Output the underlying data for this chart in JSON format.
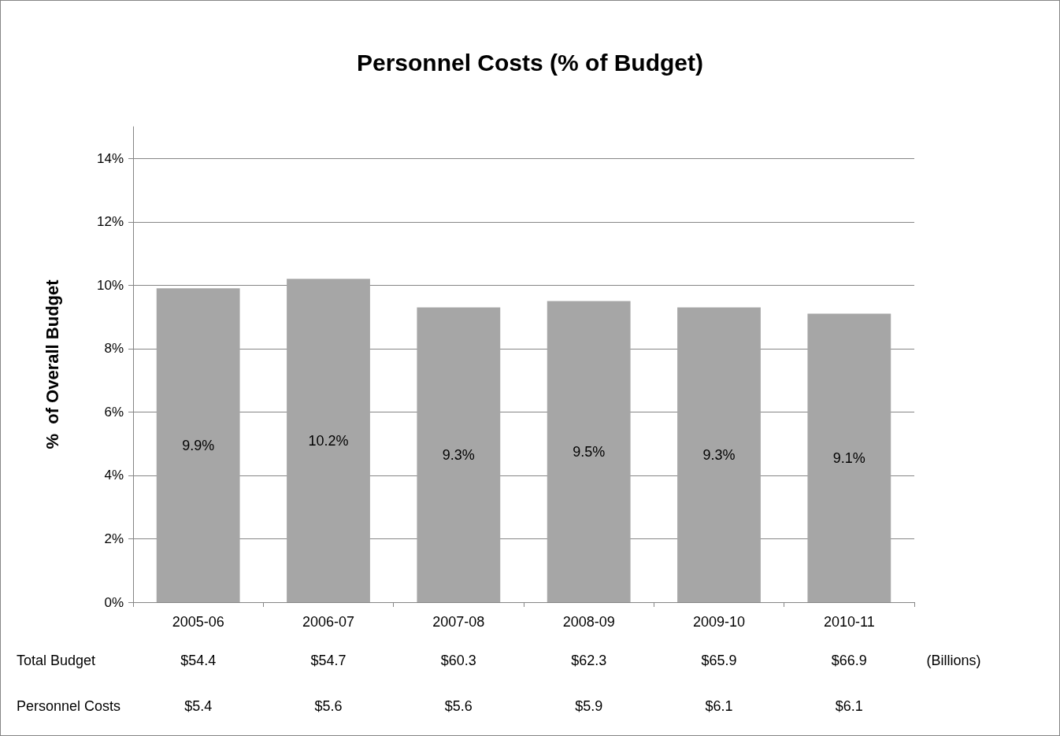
{
  "chart_data": {
    "type": "bar",
    "title": "Personnel Costs (% of Budget)",
    "ylabel": "%  of Overall Budget",
    "categories": [
      "2005-06",
      "2006-07",
      "2007-08",
      "2008-09",
      "2009-10",
      "2010-11"
    ],
    "values": [
      9.9,
      10.2,
      9.3,
      9.5,
      9.3,
      9.1
    ],
    "color": "#a6a6a6",
    "value_labels": [
      "9.9%",
      "10.2%",
      "9.3%",
      "9.5%",
      "9.3%",
      "9.1%"
    ],
    "ylim": [
      0,
      15
    ],
    "yticks": [
      {
        "value": 0,
        "label": "0%"
      },
      {
        "value": 2,
        "label": "2%"
      },
      {
        "value": 4,
        "label": "4%"
      },
      {
        "value": 6,
        "label": "6%"
      },
      {
        "value": 8,
        "label": "8%"
      },
      {
        "value": 10,
        "label": "10%"
      },
      {
        "value": 12,
        "label": "12%"
      },
      {
        "value": 14,
        "label": "14%"
      }
    ],
    "grid": "y",
    "annotations": [
      "Total Budget",
      "$54.4",
      "$54.7",
      "$60.3",
      "$62.3",
      "$65.9",
      "$66.9",
      "(Billions)",
      "Personnel Costs",
      "$5.4",
      "$5.6",
      "$5.6",
      "$5.9",
      "$6.1",
      "$6.1"
    ]
  }
}
